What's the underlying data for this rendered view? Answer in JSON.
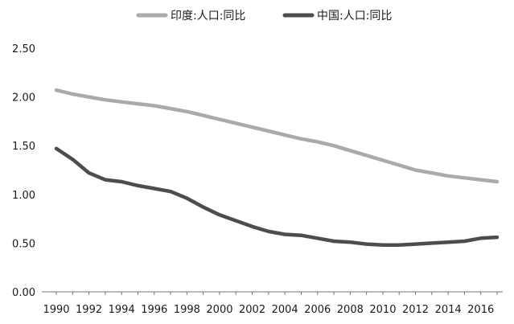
{
  "chart_data": {
    "type": "line",
    "legend_position": "top-center",
    "grid": false,
    "x": [
      1990,
      1991,
      1992,
      1993,
      1994,
      1995,
      1996,
      1997,
      1998,
      1999,
      2000,
      2001,
      2002,
      2003,
      2004,
      2005,
      2006,
      2007,
      2008,
      2009,
      2010,
      2011,
      2012,
      2013,
      2014,
      2015,
      2016,
      2017
    ],
    "x_tick_labels": [
      "1990",
      "1992",
      "1994",
      "1996",
      "1998",
      "2000",
      "2002",
      "2004",
      "2006",
      "2008",
      "2010",
      "2012",
      "2014",
      "2016"
    ],
    "y_tick_labels": [
      "0.00",
      "0.50",
      "1.00",
      "1.50",
      "2.00",
      "2.50"
    ],
    "ylim": [
      0,
      2.5
    ],
    "series": [
      {
        "name": "印度:人口:同比",
        "color": "#aaaaaa",
        "values": [
          2.07,
          2.03,
          2.0,
          1.97,
          1.95,
          1.93,
          1.91,
          1.88,
          1.85,
          1.81,
          1.77,
          1.73,
          1.69,
          1.65,
          1.61,
          1.57,
          1.54,
          1.5,
          1.45,
          1.4,
          1.35,
          1.3,
          1.25,
          1.22,
          1.19,
          1.17,
          1.15,
          1.13
        ]
      },
      {
        "name": "中国:人口:同比",
        "color": "#4d4d4d",
        "values": [
          1.47,
          1.36,
          1.22,
          1.15,
          1.13,
          1.09,
          1.06,
          1.03,
          0.96,
          0.87,
          0.79,
          0.73,
          0.67,
          0.62,
          0.59,
          0.58,
          0.55,
          0.52,
          0.51,
          0.49,
          0.48,
          0.48,
          0.49,
          0.5,
          0.51,
          0.52,
          0.55,
          0.56
        ]
      }
    ]
  }
}
